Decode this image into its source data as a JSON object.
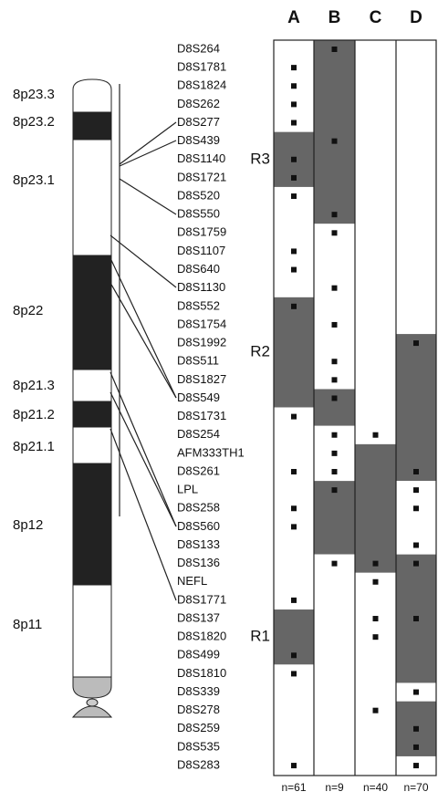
{
  "bands": [
    "8p23.3",
    "8p23.2",
    "8p23.1",
    "8p22",
    "8p21.3",
    "8p21.2",
    "8p21.1",
    "8p12",
    "8p11"
  ],
  "markers": [
    "D8S264",
    "D8S1781",
    "D8S1824",
    "D8S262",
    "D8S277",
    "D8S439",
    "D8S1140",
    "D8S1721",
    "D8S520",
    "D8S550",
    "D8S1759",
    "D8S1107",
    "D8S640",
    "D8S1130",
    "D8S552",
    "D8S1754",
    "D8S1992",
    "D8S511",
    "D8S1827",
    "D8S549",
    "D8S1731",
    "D8S254",
    "AFM333TH1",
    "D8S261",
    "LPL",
    "D8S258",
    "D8S560",
    "D8S133",
    "D8S136",
    "NEFL",
    "D8S1771",
    "D8S137",
    "D8S1820",
    "D8S499",
    "D8S1810",
    "D8S339",
    "D8S278",
    "D8S259",
    "D8S535",
    "D8S283"
  ],
  "regions": [
    "R3",
    "R2",
    "R1"
  ],
  "columns": [
    {
      "label": "A",
      "n": "n=61",
      "shaded": [
        [
          5,
          7
        ],
        [
          14,
          19
        ],
        [
          31,
          33
        ]
      ],
      "dots": [
        1,
        2,
        3,
        4,
        6,
        7,
        8,
        11,
        12,
        14,
        20,
        23,
        25,
        26,
        30,
        33,
        34,
        39
      ]
    },
    {
      "label": "B",
      "n": "n=9",
      "shaded": [
        [
          0,
          9
        ],
        [
          19,
          20
        ],
        [
          24,
          27
        ]
      ],
      "dots": [
        0,
        5,
        9,
        10,
        13,
        15,
        17,
        18,
        19,
        21,
        22,
        23,
        24,
        28
      ]
    },
    {
      "label": "C",
      "n": "n=40",
      "shaded": [
        [
          22,
          28
        ]
      ],
      "dots": [
        21,
        28,
        29,
        31,
        32,
        36
      ]
    },
    {
      "label": "D",
      "n": "n=70",
      "shaded": [
        [
          16,
          23
        ],
        [
          28,
          34
        ],
        [
          36,
          38
        ]
      ],
      "dots": [
        16,
        23,
        24,
        25,
        27,
        28,
        31,
        35,
        37,
        38,
        39
      ]
    }
  ]
}
